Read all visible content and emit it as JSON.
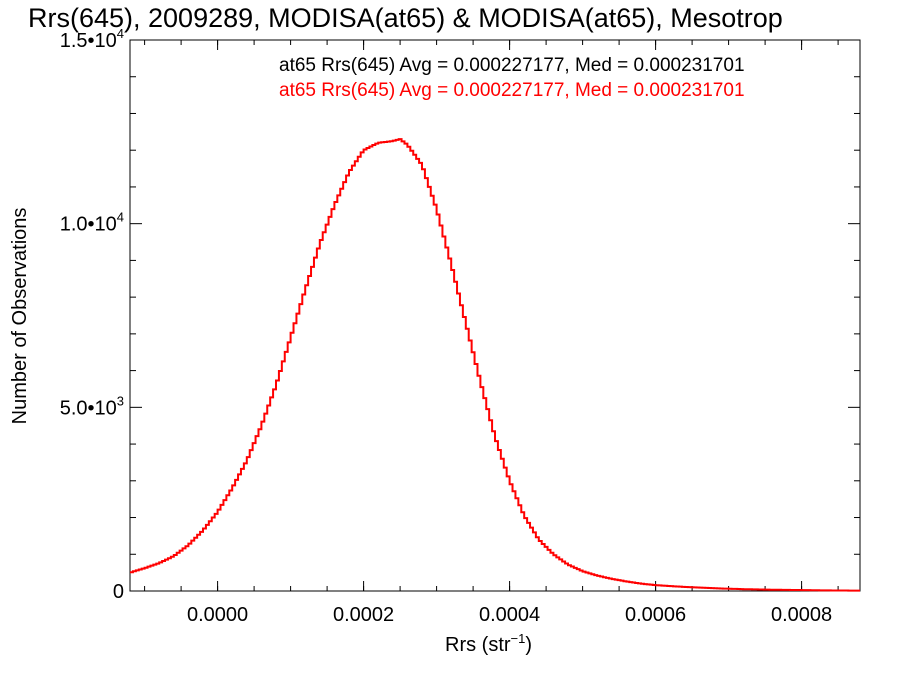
{
  "chart_data": {
    "type": "line",
    "title": "Rrs(645), 2009289, MODISA(at65) & MODISA(at65), Mesotrop",
    "xlabel": "Rrs (str",
    "xlabel_sup": "−1",
    "xlabel_close": ")",
    "ylabel": "Number of Observations",
    "xlim": [
      -0.00012,
      0.00088
    ],
    "ylim": [
      0,
      15000
    ],
    "x_ticks": [
      {
        "value": 0.0,
        "label": "0.0000"
      },
      {
        "value": 0.0002,
        "label": "0.0002"
      },
      {
        "value": 0.0004,
        "label": "0.0004"
      },
      {
        "value": 0.0006,
        "label": "0.0006"
      },
      {
        "value": 0.0008,
        "label": "0.0008"
      }
    ],
    "y_ticks": [
      {
        "value": 0,
        "base": "0",
        "exp": ""
      },
      {
        "value": 5000,
        "base": "5.0•10",
        "exp": "3"
      },
      {
        "value": 10000,
        "base": "1.0•10",
        "exp": "4"
      },
      {
        "value": 15000,
        "base": "1.5•10",
        "exp": "4"
      }
    ],
    "legend": [
      {
        "text": "at65 Rrs(645) Avg = 0.000227177, Med = 0.000231701",
        "color": "#000000"
      },
      {
        "text": "at65 Rrs(645) Avg = 0.000227177, Med = 0.000231701",
        "color": "#ff0000"
      }
    ],
    "series": [
      {
        "color": "#ff0000",
        "x": [
          -0.00012,
          -0.0001,
          -8e-05,
          -6e-05,
          -4e-05,
          -2e-05,
          0.0,
          2e-05,
          4e-05,
          6e-05,
          8e-05,
          0.0001,
          0.00012,
          0.00014,
          0.00016,
          0.00018,
          0.0002,
          0.00022,
          0.00024,
          0.00025,
          0.00026,
          0.00028,
          0.0003,
          0.00032,
          0.00034,
          0.00036,
          0.00038,
          0.0004,
          0.00042,
          0.00044,
          0.00046,
          0.00048,
          0.0005,
          0.00052,
          0.00054,
          0.00056,
          0.00058,
          0.0006,
          0.00064,
          0.00068,
          0.00072,
          0.00076,
          0.0008,
          0.00084,
          0.00088
        ],
        "y": [
          500,
          620,
          760,
          950,
          1250,
          1650,
          2150,
          2800,
          3550,
          4500,
          5600,
          6900,
          8200,
          9450,
          10500,
          11400,
          12000,
          12200,
          12250,
          12300,
          12150,
          11600,
          10400,
          8900,
          7300,
          5700,
          4200,
          3000,
          2050,
          1400,
          1000,
          720,
          540,
          420,
          330,
          260,
          200,
          160,
          110,
          75,
          50,
          35,
          25,
          15,
          10
        ]
      }
    ]
  }
}
